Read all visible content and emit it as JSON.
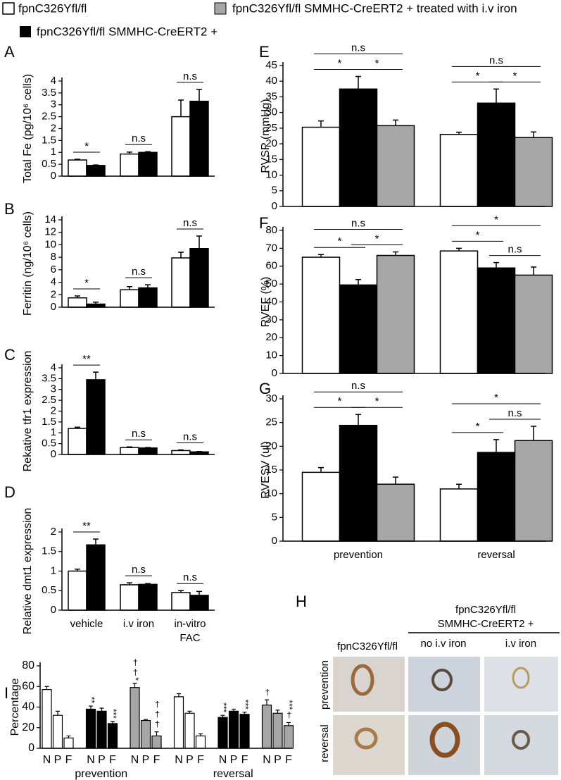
{
  "chart_data": [
    {
      "type": "bar",
      "panel": "A",
      "ylabel": "Total Fe (pg/10⁶ cells)",
      "categories": [
        null,
        null,
        null
      ],
      "ylim": [
        0,
        4
      ],
      "yticks": [
        0,
        0.5,
        1,
        1.5,
        2,
        2.5,
        3,
        3.5,
        4
      ],
      "series": [
        {
          "color": "#ffffff",
          "values": [
            0.68,
            0.93,
            2.5
          ],
          "errors": [
            0.03,
            0.08,
            0.7
          ]
        },
        {
          "color": "#000000",
          "values": [
            0.45,
            1.0,
            3.15
          ],
          "errors": [
            0.02,
            0.03,
            0.5
          ]
        }
      ],
      "annotations": [
        "*",
        "n.s",
        "n.s"
      ]
    },
    {
      "type": "bar",
      "panel": "B",
      "ylabel": "Ferritin (ng/10⁶ cells)",
      "categories": [
        null,
        null,
        null
      ],
      "ylim": [
        0,
        14
      ],
      "yticks": [
        0,
        2,
        4,
        6,
        8,
        10,
        12,
        14
      ],
      "series": [
        {
          "color": "#ffffff",
          "values": [
            1.5,
            2.8,
            7.9
          ],
          "errors": [
            0.3,
            0.5,
            0.9
          ]
        },
        {
          "color": "#000000",
          "values": [
            0.5,
            3.1,
            9.4
          ],
          "errors": [
            0.3,
            0.5,
            2
          ]
        }
      ],
      "annotations": [
        "*",
        "n.s",
        "n.s"
      ]
    },
    {
      "type": "bar",
      "panel": "C",
      "ylabel": "Rekative tfr1 expression",
      "categories": [
        null,
        null,
        null
      ],
      "ylim": [
        0,
        4
      ],
      "yticks": [
        0,
        0.5,
        1,
        1.5,
        2,
        2.5,
        3,
        3.5,
        4
      ],
      "series": [
        {
          "color": "#ffffff",
          "values": [
            1.2,
            0.32,
            0.18
          ],
          "errors": [
            0.06,
            0.03,
            0.03
          ]
        },
        {
          "color": "#000000",
          "values": [
            3.45,
            0.3,
            0.12
          ],
          "errors": [
            0.35,
            0.02,
            0.02
          ]
        }
      ],
      "annotations": [
        "**",
        "n.s",
        "n.s"
      ]
    },
    {
      "type": "bar",
      "panel": "D",
      "ylabel": "Relative dmt1 expression",
      "categories": [
        "vehicle",
        "i.v iron",
        "in-vitro FAC"
      ],
      "ylim": [
        0,
        2
      ],
      "yticks": [
        0,
        0.5,
        1,
        1.5,
        2
      ],
      "series": [
        {
          "color": "#ffffff",
          "values": [
            1.0,
            0.65,
            0.45
          ],
          "errors": [
            0.05,
            0.05,
            0.05
          ]
        },
        {
          "color": "#000000",
          "values": [
            1.67,
            0.66,
            0.38
          ],
          "errors": [
            0.15,
            0.02,
            0.1
          ]
        }
      ],
      "annotations": [
        "**",
        "n.s",
        "n.s"
      ]
    },
    {
      "type": "bar",
      "panel": "E",
      "ylabel": "RVSP (mmHg)",
      "categories": [
        null,
        null
      ],
      "ylim": [
        0,
        45
      ],
      "yticks": [
        0,
        5,
        10,
        15,
        20,
        25,
        30,
        35,
        40,
        45
      ],
      "series": [
        {
          "name": "fpnC326Yfl/fl",
          "color": "#ffffff",
          "values": [
            25.3,
            23
          ],
          "errors": [
            2,
            0.7
          ]
        },
        {
          "name": "fpnC326Yfl/fl SMMHC-CreERT2 +",
          "color": "#000000",
          "values": [
            37.5,
            33
          ],
          "errors": [
            4,
            4.5
          ]
        },
        {
          "name": "fpnC326Yfl/fl SMMHC-CreERT2 + treated with i.v iron",
          "color": "#a6a6a6",
          "values": [
            25.8,
            22
          ],
          "errors": [
            1.8,
            1.8
          ]
        }
      ],
      "annotations": [
        "n.s",
        "*",
        "*",
        "n.s",
        "*",
        "*"
      ]
    },
    {
      "type": "bar",
      "panel": "F",
      "ylabel": "RVEF (%)",
      "categories": [
        null,
        null
      ],
      "ylim": [
        0,
        80
      ],
      "yticks": [
        0,
        10,
        20,
        30,
        40,
        50,
        60,
        70,
        80
      ],
      "series": [
        {
          "color": "#ffffff",
          "values": [
            65,
            68.5
          ],
          "errors": [
            1.5,
            1.5
          ]
        },
        {
          "color": "#000000",
          "values": [
            49.5,
            59
          ],
          "errors": [
            3,
            3
          ]
        },
        {
          "color": "#a6a6a6",
          "values": [
            66,
            55
          ],
          "errors": [
            2,
            4.5
          ]
        }
      ],
      "annotations": [
        "n.s",
        "*",
        "*",
        "*",
        "*",
        "n.s"
      ]
    },
    {
      "type": "bar",
      "panel": "G",
      "ylabel": "RVESV (ul)",
      "categories": [
        "prevention",
        "reversal"
      ],
      "ylim": [
        0,
        30
      ],
      "yticks": [
        0,
        5,
        10,
        15,
        20,
        25,
        30
      ],
      "series": [
        {
          "color": "#ffffff",
          "values": [
            14.5,
            11
          ],
          "errors": [
            1,
            1
          ]
        },
        {
          "color": "#000000",
          "values": [
            24.4,
            18.7
          ],
          "errors": [
            2.3,
            2.7
          ]
        },
        {
          "color": "#a6a6a6",
          "values": [
            12,
            21.2
          ],
          "errors": [
            1.5,
            3
          ]
        }
      ],
      "annotations": [
        "n.s",
        "*",
        "*",
        "*",
        "*",
        "n.s"
      ]
    },
    {
      "type": "grouped",
      "panel": "I",
      "ylabel": "Percentage",
      "categories": [
        "N",
        "P",
        "F"
      ],
      "group_labels": [
        "prevention",
        "reversal"
      ],
      "ylim": [
        0,
        80
      ],
      "yticks": [
        0,
        20,
        40,
        60,
        80
      ],
      "series": [
        {
          "color": "#ffffff",
          "values": [
            57,
            32,
            10
          ],
          "errors": [
            3,
            4,
            2
          ],
          "marks": [
            null,
            null,
            null
          ]
        },
        {
          "color": "#000000",
          "values": [
            38,
            36,
            24
          ],
          "errors": [
            3,
            3,
            2
          ],
          "marks": [
            "**",
            null,
            "***"
          ]
        },
        {
          "color": "#a6a6a6",
          "values": [
            59,
            27,
            12
          ],
          "errors": [
            4,
            1,
            4
          ],
          "marks": [
            "††*",
            null,
            "†††"
          ]
        },
        {
          "color": "#ffffff",
          "values": [
            50,
            34,
            12
          ],
          "errors": [
            3,
            2,
            2
          ],
          "marks": [
            null,
            null,
            null
          ]
        },
        {
          "color": "#000000",
          "values": [
            30,
            36,
            33
          ],
          "errors": [
            2,
            2,
            2
          ],
          "marks": [
            "***",
            null,
            "***"
          ]
        },
        {
          "color": "#a6a6a6",
          "values": [
            42,
            34,
            22
          ],
          "errors": [
            5,
            3,
            3
          ],
          "marks": [
            "†",
            null,
            "***†"
          ]
        }
      ]
    }
  ],
  "panel_h": {
    "letter": "H",
    "group_title": [
      "fpnC326Yfl/fl",
      "SMMHC-CreERT2 +"
    ],
    "columns": [
      "fpnC326Yfl/fl",
      "no i.v iron",
      "i.v iron"
    ],
    "rows": [
      "prevention",
      "reversal"
    ]
  }
}
